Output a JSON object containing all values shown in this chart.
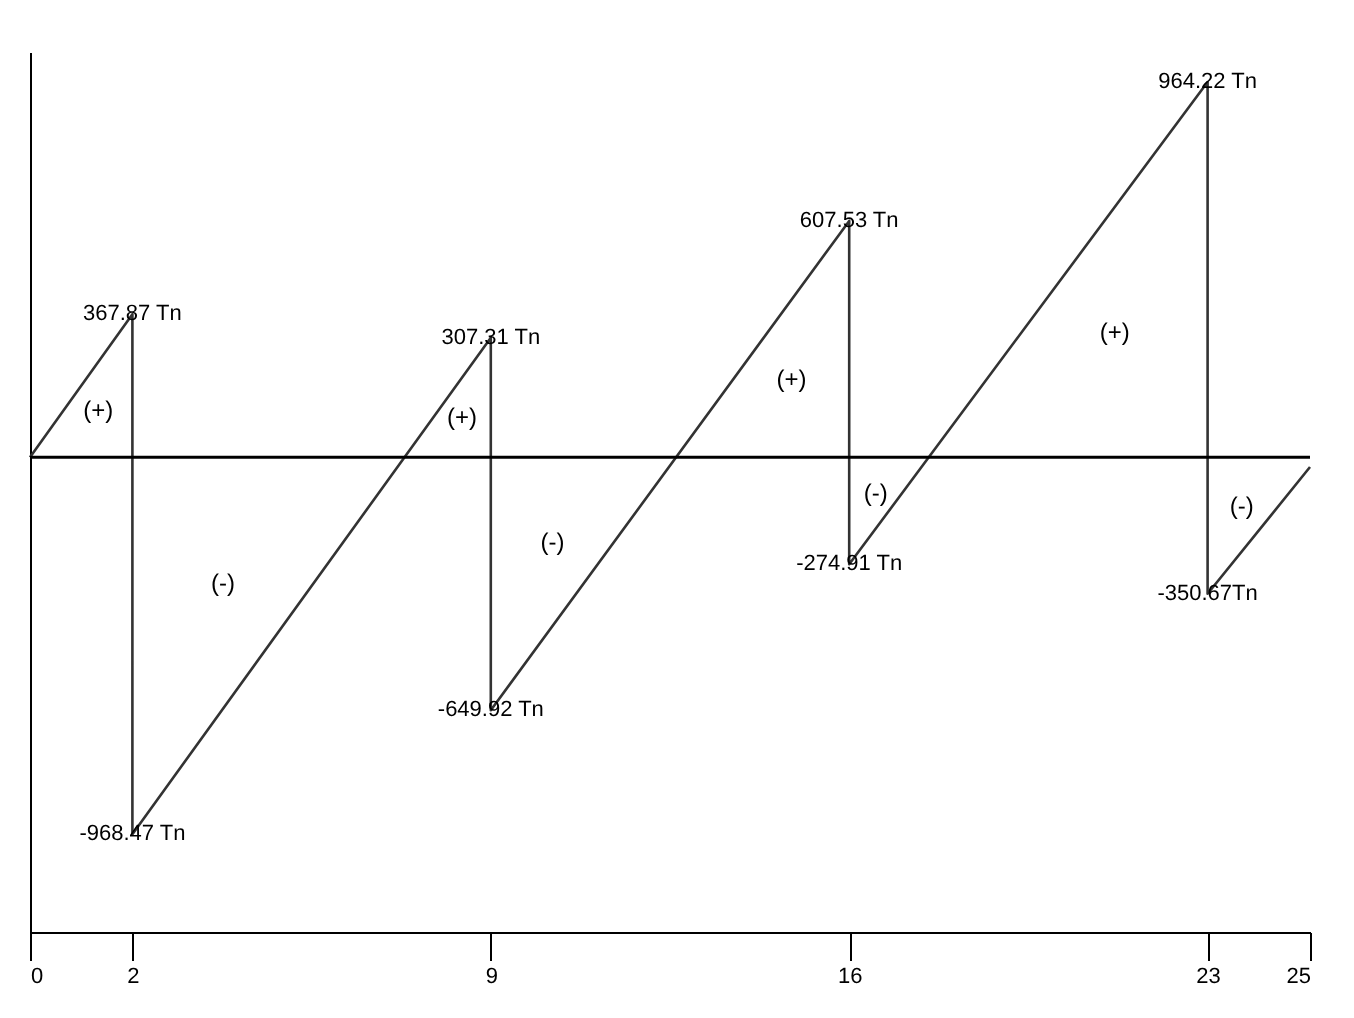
{
  "chart_data": {
    "type": "line",
    "x": [
      0,
      2,
      2,
      9,
      9,
      16,
      16,
      23,
      23,
      25
    ],
    "series": [
      {
        "color": "#333333",
        "values": [
          0,
          367.87,
          -968.47,
          307.31,
          -649.92,
          607.53,
          -274.91,
          964.22,
          -350.67,
          -25
        ],
        "value_labels": [
          null,
          "367.87 Tn",
          "-968.47 Tn",
          "307.31 Tn",
          "-649.92 Tn",
          "607.53 Tn",
          "-274.91 Tn",
          "964.22 Tn",
          "-350.67Tn",
          null
        ]
      }
    ],
    "xlim": [
      0,
      25
    ],
    "xticks": [
      0,
      2,
      9,
      16,
      23,
      25
    ],
    "tick_labels": "x",
    "marker": "none",
    "line_style": "solid",
    "ref_lines": [
      {
        "axis": "y",
        "value": 0,
        "color": "#000000"
      }
    ],
    "annotations": [
      "(+)",
      "(-)",
      "(+)",
      "(-)",
      "(+)",
      "(-)",
      "(+)",
      "(-)"
    ]
  }
}
